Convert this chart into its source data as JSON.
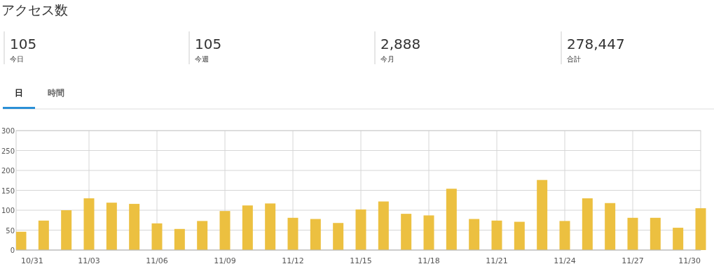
{
  "chart_data": [
    {
      "type": "other",
      "title": "アクセス数",
      "annotations": [
        "105",
        "今日",
        "105",
        "今週",
        "2,888",
        "今月",
        "278,447",
        "合計",
        "日",
        "時間"
      ]
    },
    {
      "type": "bar",
      "categories": [
        "10/31",
        null,
        null,
        "11/03",
        null,
        null,
        "11/06",
        null,
        null,
        "11/09",
        null,
        null,
        "11/12",
        null,
        null,
        "11/15",
        null,
        null,
        "11/18",
        null,
        null,
        "11/21",
        null,
        null,
        "11/24",
        null,
        null,
        "11/27",
        null,
        null,
        "11/30"
      ],
      "values": [
        46,
        74,
        100,
        130,
        119,
        116,
        67,
        53,
        73,
        98,
        112,
        117,
        81,
        78,
        68,
        102,
        122,
        91,
        87,
        154,
        78,
        74,
        71,
        176,
        73,
        130,
        118,
        81,
        81,
        56,
        105
      ],
      "color": "#ecc040",
      "ylim": [
        0,
        300
      ],
      "yticks": [
        0,
        50,
        100,
        150,
        200,
        250,
        300
      ],
      "grid": true
    }
  ]
}
